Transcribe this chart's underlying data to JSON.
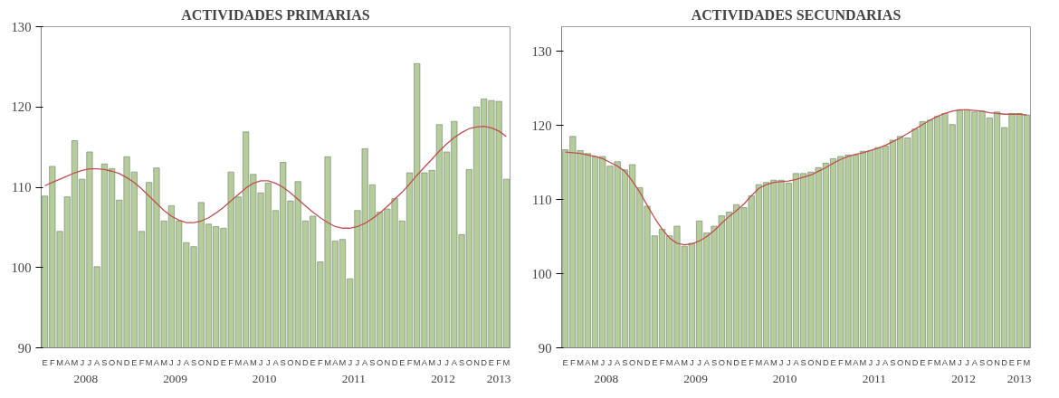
{
  "chart_data": [
    {
      "type": "bar",
      "title": "ACTIVIDADES PRIMARIAS",
      "categories": [
        "E",
        "F",
        "M",
        "A",
        "M",
        "J",
        "J",
        "A",
        "S",
        "O",
        "N",
        "D",
        "E",
        "F",
        "M",
        "A",
        "M",
        "J",
        "J",
        "A",
        "S",
        "O",
        "N",
        "D",
        "E",
        "F",
        "M",
        "A",
        "M",
        "J",
        "J",
        "A",
        "S",
        "O",
        "N",
        "D",
        "E",
        "F",
        "M",
        "A",
        "M",
        "J",
        "J",
        "A",
        "S",
        "O",
        "N",
        "D",
        "E",
        "F",
        "M",
        "A",
        "M",
        "J",
        "J",
        "A",
        "S",
        "O",
        "N",
        "D",
        "E",
        "F",
        "M"
      ],
      "annotations": [
        "2008",
        "2009",
        "2010",
        "2011",
        "2012",
        "2013"
      ],
      "series": [
        {
          "color": "#b5cc9b",
          "values": [
            108.9,
            112.6,
            104.5,
            108.8,
            115.8,
            111.0,
            114.4,
            100.1,
            112.9,
            112.3,
            108.4,
            113.8,
            111.9,
            104.5,
            110.6,
            112.4,
            105.8,
            107.7,
            105.8,
            103.1,
            102.6,
            108.1,
            105.4,
            105.1,
            104.9,
            111.9,
            108.8,
            116.9,
            111.6,
            109.3,
            110.5,
            107.1,
            113.1,
            108.3,
            110.7,
            105.8,
            106.4,
            100.7,
            113.8,
            103.3,
            103.5,
            98.6,
            107.1,
            114.8,
            110.3,
            106.9,
            107.3,
            108.6,
            105.8,
            111.8,
            125.4,
            111.8,
            112.1,
            117.8,
            114.4,
            118.2,
            104.1,
            112.2,
            120.0,
            121.0,
            120.8,
            120.7,
            111.0
          ]
        },
        {
          "type": "line",
          "color": "#c0504d",
          "values": [
            110.2,
            110.6,
            111.0,
            111.4,
            111.8,
            112.1,
            112.3,
            112.3,
            112.2,
            112.0,
            111.7,
            111.2,
            110.6,
            109.8,
            108.9,
            108.0,
            107.1,
            106.4,
            105.9,
            105.6,
            105.6,
            105.8,
            106.2,
            106.8,
            107.5,
            108.3,
            109.1,
            109.9,
            110.5,
            110.8,
            110.8,
            110.5,
            110.0,
            109.3,
            108.5,
            107.7,
            106.9,
            106.2,
            105.6,
            105.1,
            104.9,
            104.9,
            105.1,
            105.5,
            106.1,
            106.8,
            107.6,
            108.5,
            109.4,
            110.4,
            111.5,
            112.5,
            113.5,
            114.5,
            115.4,
            116.2,
            116.8,
            117.3,
            117.5,
            117.6,
            117.4,
            117.0,
            116.3
          ]
        }
      ],
      "ylim": [
        90,
        130
      ],
      "yticks": [
        90,
        100,
        110,
        120,
        130
      ]
    },
    {
      "type": "bar",
      "title": "ACTIVIDADES SECUNDARIAS",
      "categories": [
        "E",
        "F",
        "M",
        "A",
        "M",
        "J",
        "J",
        "A",
        "S",
        "O",
        "N",
        "D",
        "E",
        "F",
        "M",
        "A",
        "M",
        "J",
        "J",
        "A",
        "S",
        "O",
        "N",
        "D",
        "E",
        "F",
        "M",
        "A",
        "M",
        "J",
        "J",
        "A",
        "S",
        "O",
        "N",
        "D",
        "E",
        "F",
        "M",
        "A",
        "M",
        "J",
        "J",
        "A",
        "S",
        "O",
        "N",
        "D",
        "E",
        "F",
        "M",
        "A",
        "M",
        "J",
        "J",
        "A",
        "S",
        "O",
        "N",
        "D",
        "E",
        "F",
        "M"
      ],
      "annotations": [
        "2008",
        "2009",
        "2010",
        "2011",
        "2012",
        "2013"
      ],
      "series": [
        {
          "color": "#b5cc9b",
          "values": [
            116.7,
            118.5,
            116.6,
            116.2,
            115.8,
            115.8,
            114.5,
            115.1,
            114.0,
            114.7,
            111.6,
            109.1,
            105.1,
            106.0,
            105.1,
            106.4,
            103.7,
            104.1,
            107.1,
            105.5,
            106.4,
            107.8,
            108.3,
            109.3,
            108.9,
            110.5,
            112.0,
            112.3,
            112.6,
            112.6,
            112.2,
            113.5,
            113.5,
            113.7,
            114.3,
            114.9,
            115.5,
            115.8,
            116.0,
            116.0,
            116.5,
            116.6,
            117.0,
            117.2,
            118.0,
            118.5,
            118.3,
            119.5,
            120.5,
            120.7,
            121.2,
            121.6,
            120.1,
            122.0,
            122.1,
            121.8,
            121.9,
            121.0,
            121.8,
            119.7,
            121.6,
            121.6,
            121.4
          ]
        },
        {
          "type": "line",
          "color": "#c0504d",
          "values": [
            116.4,
            116.3,
            116.2,
            116.0,
            115.8,
            115.5,
            115.0,
            114.5,
            113.8,
            112.5,
            111.0,
            109.2,
            107.5,
            106.0,
            104.8,
            104.1,
            103.9,
            104.0,
            104.4,
            105.0,
            105.8,
            106.8,
            107.7,
            108.5,
            109.4,
            110.5,
            111.5,
            112.0,
            112.3,
            112.4,
            112.5,
            112.7,
            113.0,
            113.3,
            113.8,
            114.3,
            114.9,
            115.4,
            115.8,
            116.1,
            116.3,
            116.6,
            116.9,
            117.3,
            117.8,
            118.3,
            118.9,
            119.5,
            120.1,
            120.7,
            121.2,
            121.6,
            121.9,
            122.1,
            122.1,
            122.0,
            121.9,
            121.7,
            121.6,
            121.5,
            121.5,
            121.5,
            121.4
          ]
        }
      ],
      "ylim": [
        90,
        133.3
      ],
      "yticks": [
        90,
        100,
        110,
        120,
        130
      ]
    }
  ]
}
